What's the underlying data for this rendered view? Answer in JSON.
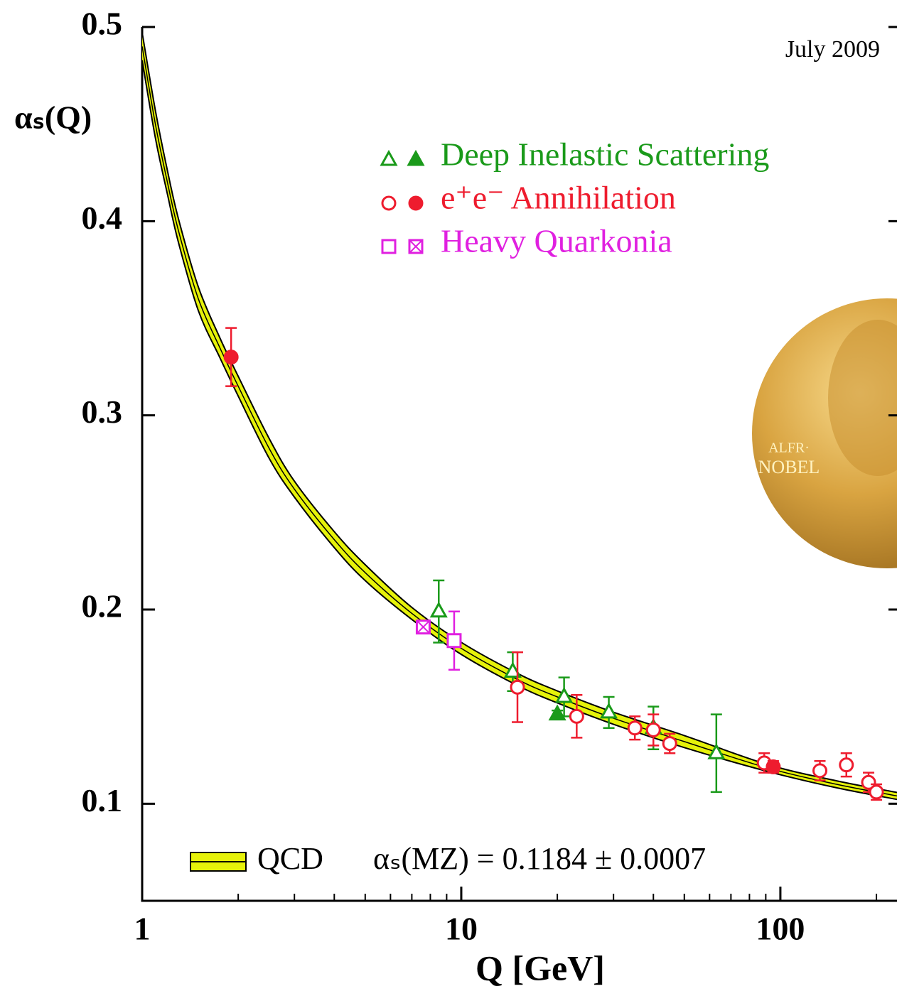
{
  "chart_data": {
    "type": "scatter",
    "xlabel": "Q [GeV]",
    "ylabel": "αₛ(Q)",
    "xlim": [
      1,
      232
    ],
    "ylim": [
      0.05,
      0.5
    ],
    "xscale": "log",
    "xticks": [
      1,
      10,
      100
    ],
    "xminorticks": [
      2,
      3,
      4,
      5,
      6,
      7,
      8,
      9,
      20,
      30,
      40,
      50,
      60,
      70,
      80,
      90,
      200
    ],
    "yticks": [
      0.1,
      0.2,
      0.3,
      0.4,
      0.5
    ],
    "annotations": {
      "date": "July 2009",
      "qcd_value": "αₛ(MZ) = 0.1184 ± 0.0007",
      "medal": [
        "ALFR·",
        "NOBEL"
      ]
    },
    "band": {
      "name": "QCD",
      "color": "#e6f20a",
      "x": [
        1,
        1.1,
        1.2,
        1.3,
        1.5,
        1.75,
        2,
        2.5,
        3,
        4,
        5,
        7,
        10,
        15,
        20,
        30,
        50,
        91.19,
        150,
        232
      ],
      "values": [
        0.49,
        0.45,
        0.42,
        0.395,
        0.36,
        0.335,
        0.315,
        0.283,
        0.262,
        0.236,
        0.219,
        0.198,
        0.18,
        0.164,
        0.155,
        0.144,
        0.132,
        0.1184,
        0.11,
        0.104
      ],
      "errors": [
        0.006,
        0.006,
        0.005,
        0.005,
        0.005,
        0.004,
        0.004,
        0.004,
        0.003,
        0.003,
        0.003,
        0.002,
        0.002,
        0.002,
        0.002,
        0.002,
        0.002,
        0.0007,
        0.0007,
        0.0007
      ]
    },
    "series": [
      {
        "name": "Deep Inelastic Scattering",
        "color": "#1a9a1a",
        "marker": "triangle",
        "x": [
          8.5,
          14.5,
          21,
          29,
          40,
          63,
          20
        ],
        "values": [
          0.199,
          0.168,
          0.155,
          0.147,
          0.139,
          0.126,
          0.146
        ],
        "errors": [
          0.016,
          0.01,
          0.01,
          0.008,
          0.011,
          0.02,
          0.002
        ],
        "filled": [
          false,
          false,
          false,
          false,
          false,
          false,
          true
        ]
      },
      {
        "name": "e⁺e⁻ Annihilation",
        "color": "#ee1c2e",
        "marker": "circle",
        "x": [
          15,
          23,
          35,
          40,
          45,
          89,
          133,
          161,
          189,
          200,
          1.9,
          95
        ],
        "values": [
          0.16,
          0.145,
          0.139,
          0.138,
          0.131,
          0.121,
          0.117,
          0.12,
          0.111,
          0.106,
          0.33,
          0.119
        ],
        "errors": [
          0.018,
          0.011,
          0.006,
          0.008,
          0.005,
          0.005,
          0.005,
          0.006,
          0.005,
          0.004,
          0.015,
          0.003
        ],
        "filled": [
          false,
          false,
          false,
          false,
          false,
          false,
          false,
          false,
          false,
          false,
          true,
          true
        ]
      },
      {
        "name": "Heavy Quarkonia",
        "color": "#e020e0",
        "marker": "square",
        "x": [
          9.5,
          7.6
        ],
        "values": [
          0.184,
          0.191
        ],
        "errors": [
          0.015,
          0.003
        ],
        "filled": [
          false,
          true
        ]
      }
    ]
  }
}
